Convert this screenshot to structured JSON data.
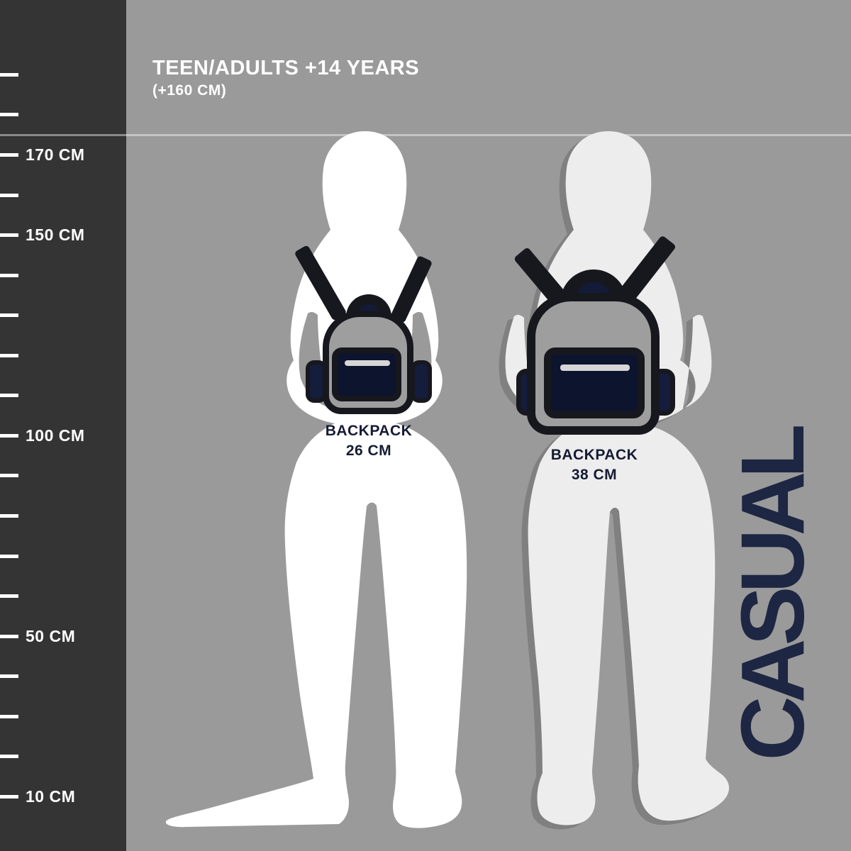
{
  "header": {
    "title": "TEEN/ADULTS +14 YEARS",
    "subtitle": "(+160 CM)"
  },
  "ruler": {
    "unit": "CM",
    "ticks": [
      {
        "cm": 190,
        "label": ""
      },
      {
        "cm": 180,
        "label": ""
      },
      {
        "cm": 170,
        "label": "170 CM"
      },
      {
        "cm": 160,
        "label": ""
      },
      {
        "cm": 150,
        "label": "150 CM"
      },
      {
        "cm": 140,
        "label": ""
      },
      {
        "cm": 130,
        "label": ""
      },
      {
        "cm": 120,
        "label": ""
      },
      {
        "cm": 110,
        "label": ""
      },
      {
        "cm": 100,
        "label": "100 CM"
      },
      {
        "cm": 90,
        "label": ""
      },
      {
        "cm": 80,
        "label": ""
      },
      {
        "cm": 70,
        "label": ""
      },
      {
        "cm": 60,
        "label": ""
      },
      {
        "cm": 50,
        "label": "50 CM"
      },
      {
        "cm": 40,
        "label": ""
      },
      {
        "cm": 30,
        "label": ""
      },
      {
        "cm": 20,
        "label": ""
      },
      {
        "cm": 10,
        "label": "10 CM"
      }
    ]
  },
  "backpacks": [
    {
      "name": "BACKPACK",
      "size": "26 CM"
    },
    {
      "name": "BACKPACK",
      "size": "38 CM"
    }
  ],
  "side_label": "CASUAL",
  "colors": {
    "panel_dark": "#343434",
    "background_gray": "#9a9a9a",
    "silhouette_1": "#ffffff",
    "silhouette_2": "#ededed",
    "outline_dark": "#17171e",
    "pocket_navy": "#0d142e",
    "accent_navy": "#1d2642",
    "zipper_gray": "#d6d6d6",
    "text_white": "#ffffff"
  }
}
